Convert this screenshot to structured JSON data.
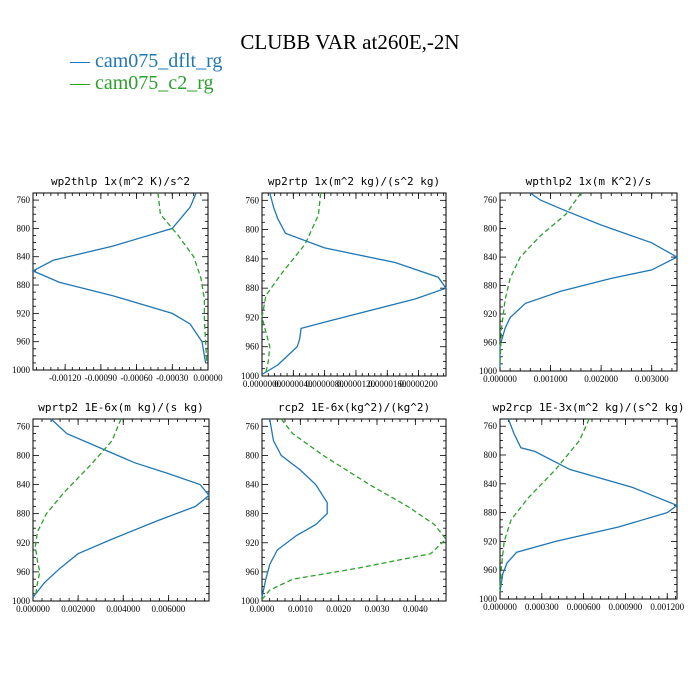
{
  "title": "CLUBB VAR at260E,-2N",
  "legend": [
    {
      "label": "cam075_dflt_rg",
      "color": "#1f77b4",
      "style": "solid"
    },
    {
      "label": "cam075_c2_rg",
      "color": "#2ca02c",
      "style": "dashed"
    }
  ],
  "chart_data": [
    {
      "type": "line",
      "title": "wp2thlp   1x(m^2 K)/s^2",
      "ylim": [
        1000,
        750
      ],
      "yticks": [
        760,
        800,
        840,
        880,
        920,
        960,
        1000
      ],
      "ytick_labels": [
        "760",
        "800",
        "840",
        "880",
        "920",
        "960",
        "1000"
      ],
      "xlim": [
        -0.00147,
        0.0
      ],
      "xticks": [
        -0.0012,
        -0.0009,
        -0.0006,
        -0.0003,
        0.0
      ],
      "xtick_labels": [
        "-0.00120",
        "-0.00090",
        "-0.00060",
        "-0.00030",
        "0.00000"
      ],
      "series": [
        {
          "name": "cam075_dflt_rg",
          "color": "#1f77b4",
          "dash": "",
          "x": [
            -0.0001,
            -0.00015,
            -0.0003,
            -0.0008,
            -0.0013,
            -0.00147,
            -0.00125,
            -0.0008,
            -0.0003,
            -0.00015,
            -5e-05,
            -2e-05
          ],
          "y": [
            750,
            770,
            800,
            825,
            845,
            860,
            876,
            895,
            920,
            935,
            960,
            990
          ]
        },
        {
          "name": "cam075_c2_rg",
          "color": "#2ca02c",
          "dash": "5,3",
          "x": [
            -0.00042,
            -0.0004,
            -0.00025,
            -0.00012,
            -6e-05,
            -3e-05,
            -3e-05,
            -2e-05,
            -1e-05
          ],
          "y": [
            750,
            780,
            810,
            840,
            870,
            900,
            930,
            960,
            990
          ]
        }
      ]
    },
    {
      "type": "line",
      "title": "wp2rtp   1x(m^2 kg)/(s^2 kg)",
      "ylim": [
        1000,
        750
      ],
      "yticks": [
        760,
        800,
        840,
        880,
        920,
        960,
        1000
      ],
      "ytick_labels": [
        "760",
        "800",
        "840",
        "880",
        "920",
        "960",
        "1000"
      ],
      "xlim": [
        0.0,
        2.35e-05
      ],
      "xticks": [
        0.0,
        4e-06,
        8e-06,
        1.2e-05,
        1.6e-05,
        2e-05
      ],
      "xtick_labels": [
        "0.0000000",
        "0.0000040",
        "0.0000080",
        "0.0000120",
        "0.0000160",
        "0.0000200"
      ],
      "series": [
        {
          "name": "cam075_dflt_rg",
          "color": "#1f77b4",
          "dash": "",
          "x": [
            1e-06,
            1.5e-06,
            2e-06,
            3e-06,
            8e-06,
            1.7e-05,
            2.25e-05,
            2.35e-05,
            1.95e-05,
            8.5e-06,
            5e-06,
            4.8e-06,
            4.5e-06,
            4e-06,
            2e-06,
            0.0
          ],
          "y": [
            750,
            770,
            785,
            805,
            825,
            845,
            865,
            880,
            895,
            925,
            935,
            950,
            960,
            965,
            985,
            998
          ]
        },
        {
          "name": "cam075_c2_rg",
          "color": "#2ca02c",
          "dash": "5,3",
          "x": [
            7.5e-06,
            7.2e-06,
            5.5e-06,
            2.5e-06,
            5e-07,
            0.0,
            5e-07,
            1e-06,
            8e-07,
            5e-07
          ],
          "y": [
            750,
            780,
            820,
            860,
            890,
            920,
            940,
            960,
            980,
            995
          ]
        }
      ]
    },
    {
      "type": "line",
      "title": "wpthlp2   1x(m K^2)/s",
      "ylim": [
        1000,
        750
      ],
      "yticks": [
        760,
        800,
        840,
        880,
        920,
        960,
        1000
      ],
      "ytick_labels": [
        "760",
        "800",
        "840",
        "880",
        "920",
        "960",
        "1000"
      ],
      "xlim": [
        0.0,
        0.0035
      ],
      "xticks": [
        0.0,
        0.001,
        0.002,
        0.003
      ],
      "xtick_labels": [
        "0.000000",
        "0.001000",
        "0.002000",
        "0.003000"
      ],
      "series": [
        {
          "name": "cam075_dflt_rg",
          "color": "#1f77b4",
          "dash": "",
          "x": [
            0.0006,
            0.0008,
            0.0013,
            0.002,
            0.003,
            0.0035,
            0.003,
            0.0022,
            0.0012,
            0.0005,
            0.0002,
            0.0001,
            0.0,
            0.0
          ],
          "y": [
            750,
            760,
            775,
            795,
            820,
            840,
            858,
            870,
            888,
            905,
            925,
            940,
            965,
            995
          ]
        },
        {
          "name": "cam075_c2_rg",
          "color": "#2ca02c",
          "dash": "5,3",
          "x": [
            0.0016,
            0.0013,
            0.0008,
            0.0004,
            0.0002,
            0.0001,
            3e-05,
            0.0
          ],
          "y": [
            750,
            780,
            810,
            840,
            870,
            900,
            940,
            990
          ]
        }
      ]
    },
    {
      "type": "line",
      "title": "wprtp2   1E-6x(m kg)/(s kg)",
      "ylim": [
        1000,
        750
      ],
      "yticks": [
        760,
        800,
        840,
        880,
        920,
        960,
        1000
      ],
      "ytick_labels": [
        "760",
        "800",
        "840",
        "880",
        "920",
        "960",
        "1000"
      ],
      "xlim": [
        0.0,
        0.0078
      ],
      "xticks": [
        0.0,
        0.002,
        0.004,
        0.006
      ],
      "xtick_labels": [
        "0.000000",
        "0.002000",
        "0.004000",
        "0.006000"
      ],
      "series": [
        {
          "name": "cam075_dflt_rg",
          "color": "#1f77b4",
          "dash": "",
          "x": [
            0.0008,
            0.0015,
            0.003,
            0.0045,
            0.006,
            0.0074,
            0.0078,
            0.0072,
            0.0055,
            0.0035,
            0.002,
            0.0012,
            0.0005,
            0.0
          ],
          "y": [
            750,
            770,
            790,
            810,
            825,
            840,
            855,
            870,
            890,
            915,
            935,
            955,
            975,
            995
          ]
        },
        {
          "name": "cam075_c2_rg",
          "color": "#2ca02c",
          "dash": "5,3",
          "x": [
            0.0039,
            0.0035,
            0.0025,
            0.0014,
            0.0006,
            0.0002,
            0.0001,
            0.0002,
            0.0003,
            0.0002,
            0.0001
          ],
          "y": [
            750,
            780,
            815,
            850,
            880,
            905,
            925,
            945,
            960,
            975,
            995
          ]
        }
      ]
    },
    {
      "type": "line",
      "title": "rcp2   1E-6x(kg^2)/(kg^2)",
      "ylim": [
        1000,
        750
      ],
      "yticks": [
        760,
        800,
        840,
        880,
        920,
        960,
        1000
      ],
      "ytick_labels": [
        "760",
        "800",
        "840",
        "880",
        "920",
        "960",
        "1000"
      ],
      "xlim": [
        0.0,
        0.0048
      ],
      "xticks": [
        0.0,
        0.001,
        0.002,
        0.003,
        0.004
      ],
      "xtick_labels": [
        "0.0000",
        "0.0010",
        "0.0020",
        "0.0030",
        "0.0040"
      ],
      "series": [
        {
          "name": "cam075_dflt_rg",
          "color": "#1f77b4",
          "dash": "",
          "x": [
            0.0002,
            0.0003,
            0.0005,
            0.001,
            0.0014,
            0.0017,
            0.0017,
            0.0014,
            0.0009,
            0.0004,
            0.0002,
            0.0001,
            0.0
          ],
          "y": [
            750,
            780,
            800,
            820,
            840,
            865,
            880,
            895,
            910,
            930,
            950,
            970,
            995
          ]
        },
        {
          "name": "cam075_c2_rg",
          "color": "#2ca02c",
          "dash": "5,3",
          "x": [
            0.0005,
            0.0008,
            0.0016,
            0.0028,
            0.0038,
            0.0045,
            0.0048,
            0.0044,
            0.0025,
            0.0008,
            0.0002,
            0.0
          ],
          "y": [
            750,
            770,
            800,
            840,
            870,
            895,
            915,
            935,
            955,
            970,
            985,
            998
          ]
        }
      ]
    },
    {
      "type": "line",
      "title": "wp2rcp   1E-3x(m^2 kg)/(s^2 kg)",
      "ylim": [
        1000,
        750
      ],
      "yticks": [
        760,
        800,
        840,
        880,
        920,
        960,
        1000
      ],
      "ytick_labels": [
        "760",
        "800",
        "840",
        "880",
        "920",
        "960",
        "1000"
      ],
      "xlim": [
        0.0,
        0.00127
      ],
      "xticks": [
        0.0,
        0.0003,
        0.0006,
        0.0009,
        0.0012
      ],
      "xtick_labels": [
        "0.000000",
        "0.000300",
        "0.000600",
        "0.000900",
        "0.001200"
      ],
      "series": [
        {
          "name": "cam075_dflt_rg",
          "color": "#1f77b4",
          "dash": "",
          "x": [
            6e-05,
            0.0001,
            0.00015,
            0.00025,
            0.0005,
            0.00095,
            0.00127,
            0.0012,
            0.00085,
            0.0004,
            0.00012,
            5e-05,
            2e-05,
            0.0
          ],
          "y": [
            750,
            770,
            790,
            795,
            820,
            845,
            870,
            880,
            900,
            920,
            935,
            950,
            965,
            990
          ]
        },
        {
          "name": "cam075_c2_rg",
          "color": "#2ca02c",
          "dash": "5,3",
          "x": [
            0.00064,
            0.00057,
            0.0004,
            0.0002,
            8e-05,
            3e-05,
            1e-05,
            0.0
          ],
          "y": [
            750,
            780,
            820,
            860,
            890,
            920,
            955,
            990
          ]
        }
      ]
    }
  ]
}
